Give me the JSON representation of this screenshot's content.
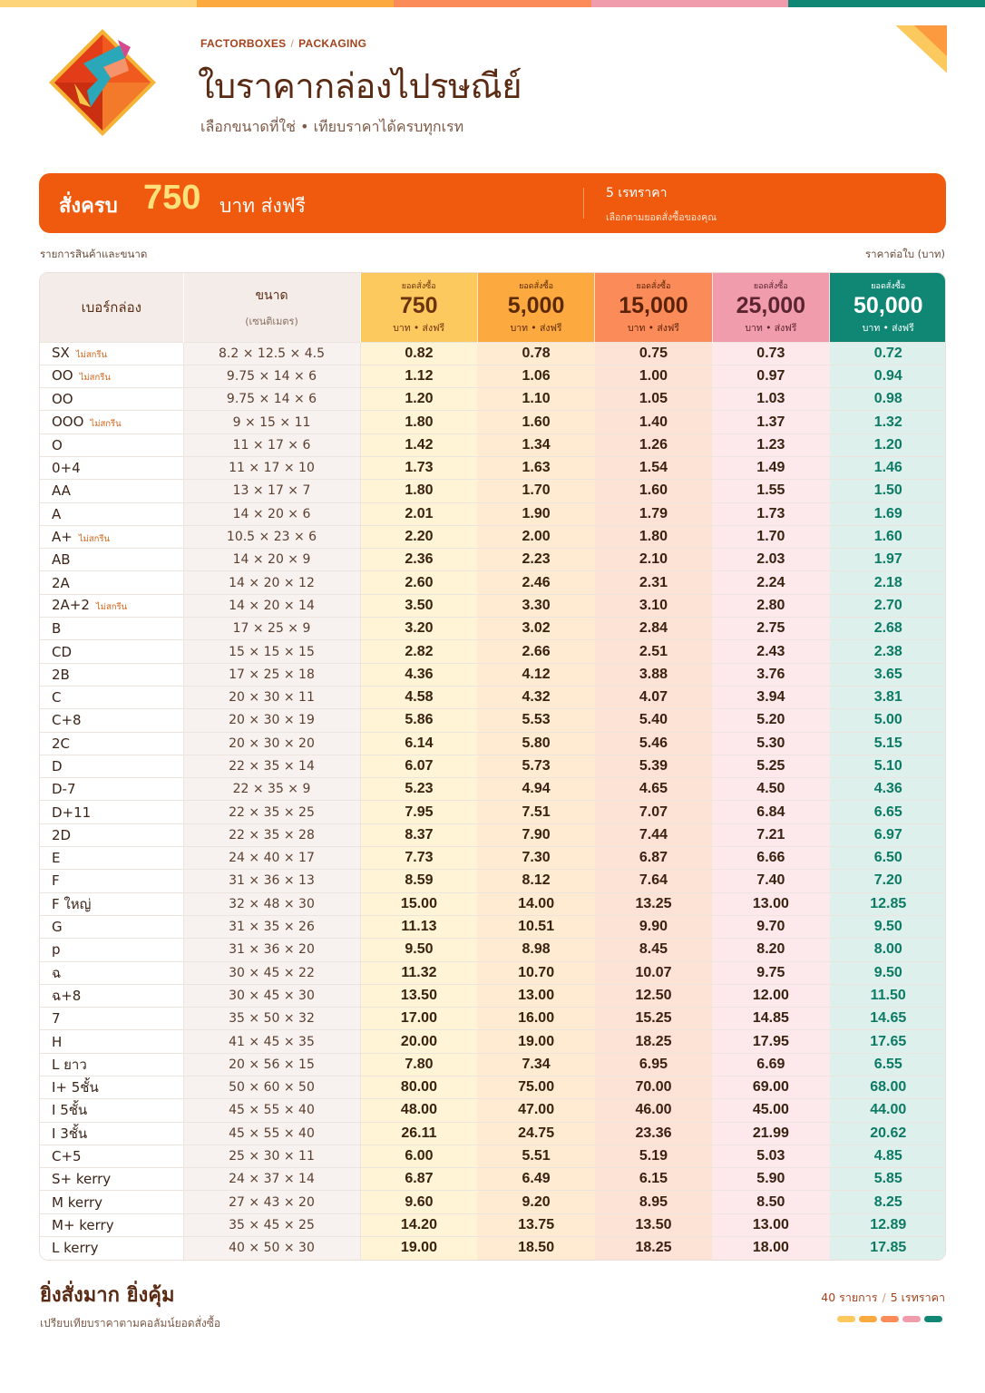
{
  "colors": [
    "#fcc95e",
    "#fcaa40",
    "#fb8c5a",
    "#f19cac",
    "#0f8774"
  ],
  "header": {
    "brand": "FACTORBOXES",
    "brand_sep": "/",
    "category": "PACKAGING",
    "title": "ใบราคากล่องไปรษณีย์",
    "subtitle": "เลือกขนาดที่ใช่  •  เทียบราคาได้ครบทุกเรท"
  },
  "banner": {
    "prefix": "สั่งครบ",
    "amount": "750",
    "suffix": "บาท ส่งฟรี",
    "tiers_title": "5 เรทราคา",
    "tiers_note": "เลือกตามยอดสั่งซื้อของคุณ"
  },
  "table_labels": {
    "left": "รายการสินค้าและขนาด",
    "right": "ราคาต่อใบ (บาท)",
    "col_name": "เบอร์กล่อง",
    "col_size": "ขนาด",
    "col_size_unit": "(เซนติเมตร)",
    "note_no_print": "ไม่สกรีน"
  },
  "tiers": [
    {
      "label": "ยอดสั่งซื้อ",
      "amount": "750",
      "note": "บาท • ส่งฟรี"
    },
    {
      "label": "ยอดสั่งซื้อ",
      "amount": "5,000",
      "note": "บาท • ส่งฟรี"
    },
    {
      "label": "ยอดสั่งซื้อ",
      "amount": "15,000",
      "note": "บาท • ส่งฟรี"
    },
    {
      "label": "ยอดสั่งซื้อ",
      "amount": "25,000",
      "note": "บาท • ส่งฟรี"
    },
    {
      "label": "ยอดสั่งซื้อ",
      "amount": "50,000",
      "note": "บาท • ส่งฟรี"
    }
  ],
  "rows": [
    {
      "name": "SX",
      "note": "ไม่สกรีน",
      "size": "8.2 × 12.5 × 4.5",
      "prices": [
        "0.82",
        "0.78",
        "0.75",
        "0.73",
        "0.72"
      ]
    },
    {
      "name": "OO",
      "note": "ไม่สกรีน",
      "size": "9.75 × 14 × 6",
      "prices": [
        "1.12",
        "1.06",
        "1.00",
        "0.97",
        "0.94"
      ]
    },
    {
      "name": "OO",
      "note": "",
      "size": "9.75 × 14 × 6",
      "prices": [
        "1.20",
        "1.10",
        "1.05",
        "1.03",
        "0.98"
      ]
    },
    {
      "name": "OOO",
      "note": "ไม่สกรีน",
      "size": "9 × 15 × 11",
      "prices": [
        "1.80",
        "1.60",
        "1.40",
        "1.37",
        "1.32"
      ]
    },
    {
      "name": "O",
      "note": "",
      "size": "11 × 17 × 6",
      "prices": [
        "1.42",
        "1.34",
        "1.26",
        "1.23",
        "1.20"
      ]
    },
    {
      "name": "0+4",
      "note": "",
      "size": "11 × 17 × 10",
      "prices": [
        "1.73",
        "1.63",
        "1.54",
        "1.49",
        "1.46"
      ]
    },
    {
      "name": "AA",
      "note": "",
      "size": "13 × 17 × 7",
      "prices": [
        "1.80",
        "1.70",
        "1.60",
        "1.55",
        "1.50"
      ]
    },
    {
      "name": "A",
      "note": "",
      "size": "14 × 20 × 6",
      "prices": [
        "2.01",
        "1.90",
        "1.79",
        "1.73",
        "1.69"
      ]
    },
    {
      "name": "A+",
      "note": "ไม่สกรีน",
      "size": "10.5 × 23 × 6",
      "prices": [
        "2.20",
        "2.00",
        "1.80",
        "1.70",
        "1.60"
      ]
    },
    {
      "name": "AB",
      "note": "",
      "size": "14 × 20 × 9",
      "prices": [
        "2.36",
        "2.23",
        "2.10",
        "2.03",
        "1.97"
      ]
    },
    {
      "name": "2A",
      "note": "",
      "size": "14 × 20 × 12",
      "prices": [
        "2.60",
        "2.46",
        "2.31",
        "2.24",
        "2.18"
      ]
    },
    {
      "name": "2A+2",
      "note": "ไม่สกรีน",
      "size": "14 × 20 × 14",
      "prices": [
        "3.50",
        "3.30",
        "3.10",
        "2.80",
        "2.70"
      ]
    },
    {
      "name": "B",
      "note": "",
      "size": "17 × 25 × 9",
      "prices": [
        "3.20",
        "3.02",
        "2.84",
        "2.75",
        "2.68"
      ]
    },
    {
      "name": "CD",
      "note": "",
      "size": "15 × 15 × 15",
      "prices": [
        "2.82",
        "2.66",
        "2.51",
        "2.43",
        "2.38"
      ]
    },
    {
      "name": "2B",
      "note": "",
      "size": "17 × 25 × 18",
      "prices": [
        "4.36",
        "4.12",
        "3.88",
        "3.76",
        "3.65"
      ]
    },
    {
      "name": "C",
      "note": "",
      "size": "20 × 30 × 11",
      "prices": [
        "4.58",
        "4.32",
        "4.07",
        "3.94",
        "3.81"
      ]
    },
    {
      "name": "C+8",
      "note": "",
      "size": "20 × 30 × 19",
      "prices": [
        "5.86",
        "5.53",
        "5.40",
        "5.20",
        "5.00"
      ]
    },
    {
      "name": "2C",
      "note": "",
      "size": "20 × 30 × 20",
      "prices": [
        "6.14",
        "5.80",
        "5.46",
        "5.30",
        "5.15"
      ]
    },
    {
      "name": "D",
      "note": "",
      "size": "22 × 35 × 14",
      "prices": [
        "6.07",
        "5.73",
        "5.39",
        "5.25",
        "5.10"
      ]
    },
    {
      "name": "D-7",
      "note": "",
      "size": "22 × 35 × 9",
      "prices": [
        "5.23",
        "4.94",
        "4.65",
        "4.50",
        "4.36"
      ]
    },
    {
      "name": "D+11",
      "note": "",
      "size": "22 × 35 × 25",
      "prices": [
        "7.95",
        "7.51",
        "7.07",
        "6.84",
        "6.65"
      ]
    },
    {
      "name": "2D",
      "note": "",
      "size": "22 × 35 × 28",
      "prices": [
        "8.37",
        "7.90",
        "7.44",
        "7.21",
        "6.97"
      ]
    },
    {
      "name": "E",
      "note": "",
      "size": "24 × 40 × 17",
      "prices": [
        "7.73",
        "7.30",
        "6.87",
        "6.66",
        "6.50"
      ]
    },
    {
      "name": "F",
      "note": "",
      "size": "31 × 36 × 13",
      "prices": [
        "8.59",
        "8.12",
        "7.64",
        "7.40",
        "7.20"
      ]
    },
    {
      "name": "F ใหญ่",
      "note": "",
      "size": "32 × 48 × 30",
      "prices": [
        "15.00",
        "14.00",
        "13.25",
        "13.00",
        "12.85"
      ]
    },
    {
      "name": "G",
      "note": "",
      "size": "31 × 35 × 26",
      "prices": [
        "11.13",
        "10.51",
        "9.90",
        "9.70",
        "9.50"
      ]
    },
    {
      "name": "p",
      "note": "",
      "size": "31 × 36 × 20",
      "prices": [
        "9.50",
        "8.98",
        "8.45",
        "8.20",
        "8.00"
      ]
    },
    {
      "name": "ฉ",
      "note": "",
      "size": "30 × 45 × 22",
      "prices": [
        "11.32",
        "10.70",
        "10.07",
        "9.75",
        "9.50"
      ]
    },
    {
      "name": "ฉ+8",
      "note": "",
      "size": "30 × 45 × 30",
      "prices": [
        "13.50",
        "13.00",
        "12.50",
        "12.00",
        "11.50"
      ]
    },
    {
      "name": "7",
      "note": "",
      "size": "35 × 50 × 32",
      "prices": [
        "17.00",
        "16.00",
        "15.25",
        "14.85",
        "14.65"
      ]
    },
    {
      "name": "H",
      "note": "",
      "size": "41 × 45 × 35",
      "prices": [
        "20.00",
        "19.00",
        "18.25",
        "17.95",
        "17.65"
      ]
    },
    {
      "name": "L ยาว",
      "note": "",
      "size": "20 × 56 × 15",
      "prices": [
        "7.80",
        "7.34",
        "6.95",
        "6.69",
        "6.55"
      ]
    },
    {
      "name": "I+ 5ชั้น",
      "note": "",
      "size": "50 × 60 × 50",
      "prices": [
        "80.00",
        "75.00",
        "70.00",
        "69.00",
        "68.00"
      ]
    },
    {
      "name": "I 5ชั้น",
      "note": "",
      "size": "45 × 55 × 40",
      "prices": [
        "48.00",
        "47.00",
        "46.00",
        "45.00",
        "44.00"
      ]
    },
    {
      "name": "I 3ชั้น",
      "note": "",
      "size": "45 × 55 × 40",
      "prices": [
        "26.11",
        "24.75",
        "23.36",
        "21.99",
        "20.62"
      ]
    },
    {
      "name": "C+5",
      "note": "",
      "size": "25 × 30 × 11",
      "prices": [
        "6.00",
        "5.51",
        "5.19",
        "5.03",
        "4.85"
      ]
    },
    {
      "name": "S+ kerry",
      "note": "",
      "size": "24 × 37 × 14",
      "prices": [
        "6.87",
        "6.49",
        "6.15",
        "5.90",
        "5.85"
      ]
    },
    {
      "name": "M kerry",
      "note": "",
      "size": "27 × 43 × 20",
      "prices": [
        "9.60",
        "9.20",
        "8.95",
        "8.50",
        "8.25"
      ]
    },
    {
      "name": "M+ kerry",
      "note": "",
      "size": "35 × 45 × 25",
      "prices": [
        "14.20",
        "13.75",
        "13.50",
        "13.00",
        "12.89"
      ]
    },
    {
      "name": "L kerry",
      "note": "",
      "size": "40 × 50 × 30",
      "prices": [
        "19.00",
        "18.50",
        "18.25",
        "18.00",
        "17.85"
      ]
    }
  ],
  "footer": {
    "title": "ยิ่งสั่งมาก ยิ่งคุ้ม",
    "subtitle": "เปรียบเทียบราคาตามคอลัมน์ยอดสั่งซื้อ",
    "count": "40 รายการ",
    "sep": "/",
    "tiers_count": "5 เรทราคา"
  }
}
